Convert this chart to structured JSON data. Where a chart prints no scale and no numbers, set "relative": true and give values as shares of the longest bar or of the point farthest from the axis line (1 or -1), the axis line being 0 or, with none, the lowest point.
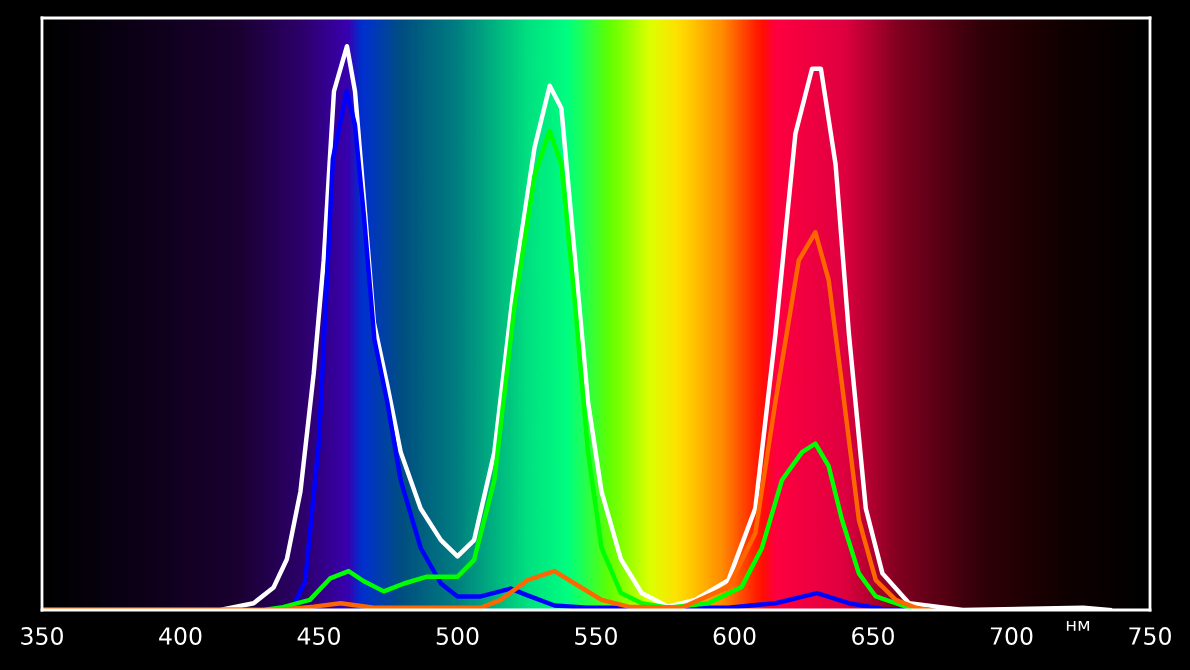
{
  "chart_data": {
    "type": "line",
    "relative": true,
    "xlabel": "нм",
    "xlim": [
      350,
      750
    ],
    "xticks": [
      350,
      400,
      450,
      500,
      550,
      600,
      650,
      700,
      750
    ],
    "grid": false,
    "legend": false,
    "series": [
      {
        "color": "#ffffff",
        "x": [
          350,
          414.3,
          426.4,
          433.6,
          438.4,
          443.3,
          448.1,
          451.7,
          455.4,
          460.1,
          463,
          466.2,
          469.8,
          474.6,
          479.5,
          486.7,
          494,
          500,
          506,
          513.3,
          520.6,
          527.8,
          533.3,
          537.5,
          542.3,
          547.1,
          552,
          559,
          566.5,
          576,
          585.8,
          597.8,
          607.5,
          614.8,
          622,
          628,
          631.2,
          636.5,
          641.3,
          647.4,
          653.4,
          663,
          682.4,
          725.9,
          735.5
        ],
        "values": [
          0,
          0,
          0.012,
          0.04,
          0.09,
          0.21,
          0.42,
          0.62,
          0.92,
          1.0,
          0.92,
          0.73,
          0.51,
          0.4,
          0.28,
          0.18,
          0.124,
          0.095,
          0.124,
          0.28,
          0.585,
          0.82,
          0.93,
          0.89,
          0.63,
          0.37,
          0.21,
          0.09,
          0.03,
          0.006,
          0.018,
          0.053,
          0.18,
          0.49,
          0.845,
          0.96,
          0.96,
          0.79,
          0.49,
          0.18,
          0.065,
          0.012,
          0,
          0.004,
          0
        ]
      },
      {
        "color": "#0000ff",
        "x": [
          350,
          440,
          445,
          450,
          455,
          460,
          463,
          466.2,
          470,
          474.6,
          479.5,
          486.7,
          494,
          500,
          508.4,
          519.2,
          525.3,
          535,
          547,
          597.8,
          614.8,
          629.8,
          641.3,
          653.4,
          670
        ],
        "values": [
          0,
          0,
          0.05,
          0.3,
          0.8,
          0.92,
          0.86,
          0.7,
          0.48,
          0.37,
          0.23,
          0.11,
          0.047,
          0.024,
          0.024,
          0.038,
          0.026,
          0.008,
          0.004,
          0.004,
          0.012,
          0.03,
          0.012,
          0.002,
          0
        ]
      },
      {
        "color": "#00ff00",
        "x": [
          350,
          430,
          437,
          446.7,
          454,
          460.7,
          466.2,
          473.4,
          480.7,
          489,
          500,
          506,
          513.3,
          520.6,
          527.8,
          533.3,
          537.5,
          542.3,
          547.1,
          552,
          559,
          566.5,
          576,
          590.5,
          602.6,
          609.9,
          617.1,
          624.4,
          629.2,
          634,
          638.8,
          644.9,
          651,
          663,
          670
        ],
        "values": [
          0,
          0,
          0.005,
          0.018,
          0.056,
          0.069,
          0.051,
          0.033,
          0.047,
          0.059,
          0.059,
          0.089,
          0.23,
          0.54,
          0.77,
          0.85,
          0.79,
          0.55,
          0.28,
          0.11,
          0.03,
          0.012,
          0.004,
          0.012,
          0.041,
          0.11,
          0.23,
          0.28,
          0.295,
          0.255,
          0.16,
          0.065,
          0.024,
          0.004,
          0
        ]
      },
      {
        "color": "#ff6600",
        "x": [
          350,
          435,
          448.1,
          457.8,
          469.8,
          508.4,
          515.6,
          525.3,
          535,
          542.3,
          552,
          561.7,
          580.9,
          597.8,
          607.5,
          614.8,
          623.2,
          629.2,
          634,
          638.8,
          644.9,
          651,
          658.2,
          665.5,
          670
        ],
        "values": [
          0,
          0,
          0.006,
          0.012,
          0.004,
          0.004,
          0.018,
          0.053,
          0.069,
          0.047,
          0.018,
          0.006,
          0.004,
          0.041,
          0.136,
          0.37,
          0.62,
          0.67,
          0.585,
          0.4,
          0.16,
          0.053,
          0.018,
          0.004,
          0
        ]
      }
    ]
  }
}
